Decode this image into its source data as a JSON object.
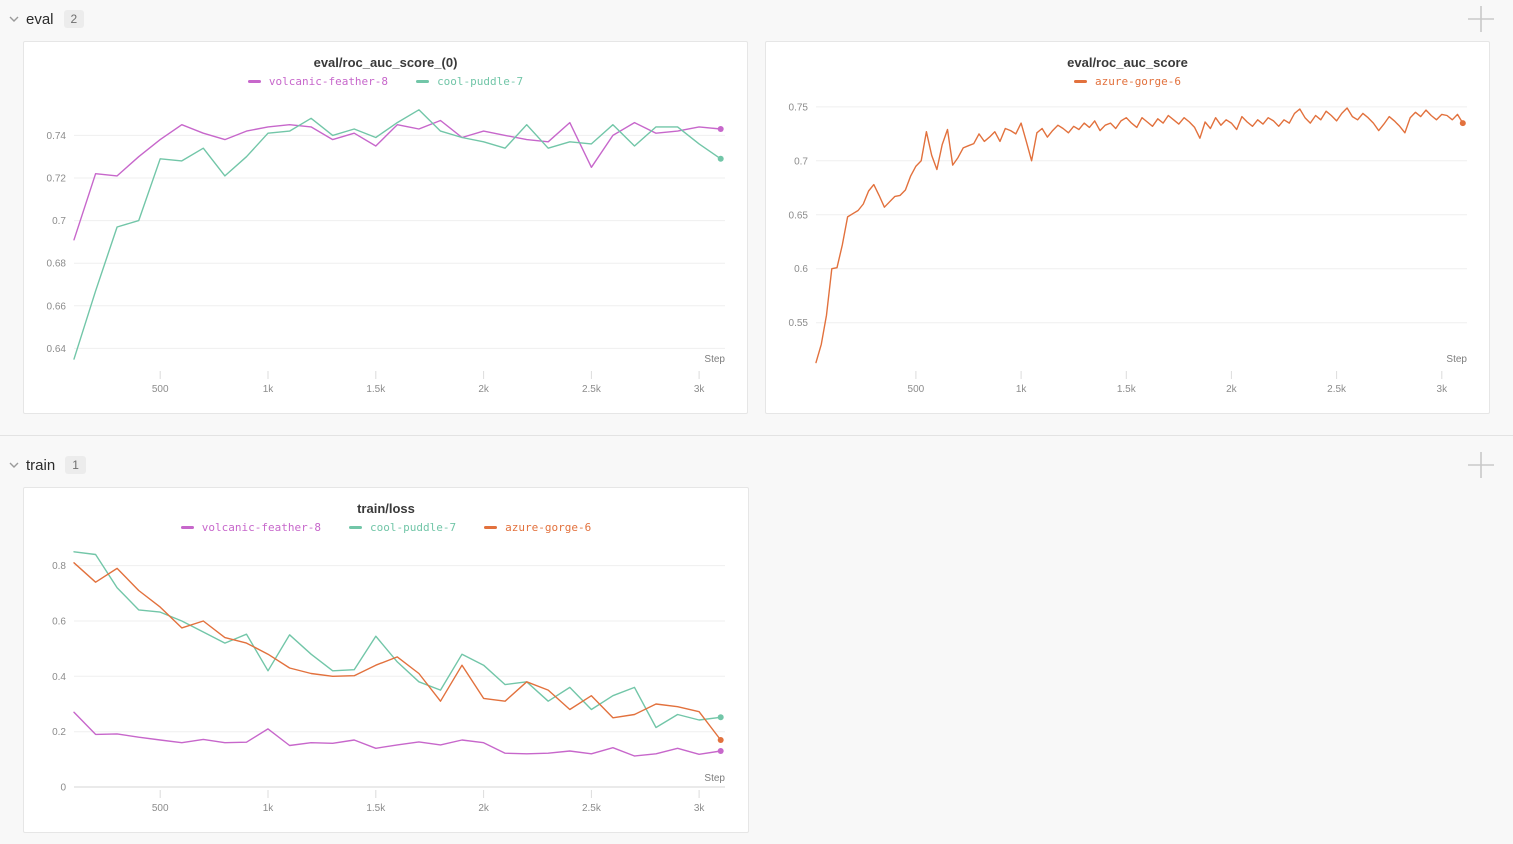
{
  "sections": [
    {
      "label": "eval",
      "count": "2"
    },
    {
      "label": "train",
      "count": "1"
    }
  ],
  "icons": {
    "collapse": "chevron-down-icon",
    "add_panel": "plus-icon"
  },
  "colors": {
    "volcanic_feather_8": "#C767CB",
    "cool_puddle_7": "#72C6A8",
    "azure_gorge_6": "#E2713D",
    "grid": "#efefef",
    "axis_text": "#8c8c8c"
  },
  "chart_data": [
    {
      "type": "line",
      "title": "eval/roc_auc_score_(0)",
      "xlabel": "Step",
      "legend_position": "top",
      "grid": "horizontal",
      "x_axis": {
        "min": 100,
        "max": 3120,
        "ticks": [
          500,
          1000,
          1500,
          2000,
          2500,
          3000
        ],
        "tick_labels": [
          "500",
          "1k",
          "1.5k",
          "2k",
          "2.5k",
          "3k"
        ]
      },
      "y_axis": {
        "min": 0.6308,
        "max": 0.7552,
        "ticks": [
          0.64,
          0.66,
          0.68,
          0.7,
          0.72,
          0.74
        ],
        "tick_labels": [
          "0.64",
          "0.66",
          "0.68",
          "0.7",
          "0.72",
          "0.74"
        ],
        "zero_axis_line": false
      },
      "series": [
        {
          "name": "volcanic-feather-8",
          "color": "#C767CB",
          "x_start": 100,
          "x_step": 100,
          "end_dot": true,
          "values": [
            0.691,
            0.722,
            0.721,
            0.73,
            0.738,
            0.745,
            0.741,
            0.738,
            0.742,
            0.744,
            0.745,
            0.744,
            0.738,
            0.741,
            0.735,
            0.745,
            0.743,
            0.747,
            0.739,
            0.742,
            0.74,
            0.738,
            0.737,
            0.746,
            0.725,
            0.74,
            0.746,
            0.741,
            0.742,
            0.744,
            0.743
          ]
        },
        {
          "name": "cool-puddle-7",
          "color": "#72C6A8",
          "x_start": 100,
          "x_step": 100,
          "end_dot": true,
          "values": [
            0.635,
            0.667,
            0.697,
            0.7,
            0.729,
            0.728,
            0.734,
            0.721,
            0.73,
            0.741,
            0.742,
            0.748,
            0.74,
            0.743,
            0.739,
            0.746,
            0.752,
            0.742,
            0.739,
            0.737,
            0.734,
            0.745,
            0.734,
            0.737,
            0.736,
            0.745,
            0.735,
            0.744,
            0.744,
            0.736,
            0.729
          ]
        }
      ]
    },
    {
      "type": "line",
      "title": "eval/roc_auc_score",
      "xlabel": "Step",
      "legend_position": "top",
      "grid": "horizontal",
      "x_axis": {
        "min": 25,
        "max": 3120,
        "ticks": [
          500,
          1000,
          1500,
          2000,
          2500,
          3000
        ],
        "tick_labels": [
          "500",
          "1k",
          "1.5k",
          "2k",
          "2.5k",
          "3k"
        ]
      },
      "y_axis": {
        "min": 0.508,
        "max": 0.7536,
        "ticks": [
          0.55,
          0.6,
          0.65,
          0.7,
          0.75
        ],
        "tick_labels": [
          "0.55",
          "0.6",
          "0.65",
          "0.7",
          "0.75"
        ],
        "zero_axis_line": false
      },
      "series": [
        {
          "name": "azure-gorge-6",
          "color": "#E2713D",
          "x_start": 25,
          "x_step": 25,
          "end_dot": true,
          "values": [
            0.513,
            0.53,
            0.557,
            0.6,
            0.601,
            0.622,
            0.648,
            0.651,
            0.654,
            0.66,
            0.672,
            0.678,
            0.668,
            0.657,
            0.662,
            0.667,
            0.668,
            0.673,
            0.686,
            0.695,
            0.7,
            0.727,
            0.705,
            0.692,
            0.715,
            0.729,
            0.696,
            0.703,
            0.712,
            0.714,
            0.716,
            0.725,
            0.718,
            0.722,
            0.727,
            0.718,
            0.73,
            0.728,
            0.725,
            0.735,
            0.718,
            0.7,
            0.726,
            0.73,
            0.722,
            0.728,
            0.733,
            0.73,
            0.726,
            0.732,
            0.729,
            0.735,
            0.731,
            0.737,
            0.728,
            0.733,
            0.735,
            0.73,
            0.737,
            0.74,
            0.735,
            0.731,
            0.74,
            0.736,
            0.732,
            0.739,
            0.735,
            0.742,
            0.738,
            0.734,
            0.74,
            0.736,
            0.731,
            0.721,
            0.736,
            0.73,
            0.74,
            0.733,
            0.738,
            0.735,
            0.729,
            0.741,
            0.736,
            0.732,
            0.738,
            0.734,
            0.74,
            0.737,
            0.732,
            0.738,
            0.735,
            0.744,
            0.748,
            0.74,
            0.735,
            0.742,
            0.738,
            0.746,
            0.742,
            0.737,
            0.744,
            0.749,
            0.741,
            0.738,
            0.744,
            0.74,
            0.735,
            0.728,
            0.734,
            0.741,
            0.737,
            0.732,
            0.726,
            0.74,
            0.745,
            0.741,
            0.747,
            0.742,
            0.738,
            0.743,
            0.742,
            0.738,
            0.743,
            0.735
          ]
        }
      ]
    },
    {
      "type": "line",
      "title": "train/loss",
      "xlabel": "Step",
      "legend_position": "top",
      "grid": "horizontal",
      "x_axis": {
        "min": 100,
        "max": 3120,
        "ticks": [
          500,
          1000,
          1500,
          2000,
          2500,
          3000
        ],
        "tick_labels": [
          "500",
          "1k",
          "1.5k",
          "2k",
          "2.5k",
          "3k"
        ]
      },
      "y_axis": {
        "min": 0,
        "max": 0.86,
        "ticks": [
          0,
          0.2,
          0.4,
          0.6,
          0.8
        ],
        "tick_labels": [
          "0",
          "0.2",
          "0.4",
          "0.6",
          "0.8"
        ],
        "zero_axis_line": true
      },
      "series": [
        {
          "name": "volcanic-feather-8",
          "color": "#C767CB",
          "x_start": 100,
          "x_step": 100,
          "end_dot": true,
          "values": [
            0.27,
            0.19,
            0.192,
            0.18,
            0.17,
            0.16,
            0.172,
            0.16,
            0.162,
            0.21,
            0.15,
            0.16,
            0.158,
            0.17,
            0.14,
            0.152,
            0.163,
            0.152,
            0.17,
            0.16,
            0.122,
            0.12,
            0.122,
            0.13,
            0.12,
            0.142,
            0.112,
            0.12,
            0.14,
            0.118,
            0.13
          ]
        },
        {
          "name": "cool-puddle-7",
          "color": "#72C6A8",
          "x_start": 100,
          "x_step": 100,
          "end_dot": true,
          "values": [
            0.85,
            0.84,
            0.72,
            0.64,
            0.632,
            0.6,
            0.56,
            0.52,
            0.552,
            0.42,
            0.55,
            0.48,
            0.42,
            0.424,
            0.545,
            0.452,
            0.38,
            0.35,
            0.48,
            0.44,
            0.37,
            0.38,
            0.31,
            0.36,
            0.28,
            0.33,
            0.36,
            0.215,
            0.262,
            0.242,
            0.252
          ]
        },
        {
          "name": "azure-gorge-6",
          "color": "#E2713D",
          "x_start": 100,
          "x_step": 100,
          "end_dot": true,
          "values": [
            0.81,
            0.74,
            0.79,
            0.71,
            0.65,
            0.575,
            0.6,
            0.54,
            0.52,
            0.48,
            0.43,
            0.41,
            0.4,
            0.402,
            0.44,
            0.47,
            0.41,
            0.31,
            0.44,
            0.32,
            0.31,
            0.38,
            0.35,
            0.28,
            0.33,
            0.25,
            0.262,
            0.3,
            0.29,
            0.272,
            0.17
          ]
        }
      ]
    }
  ]
}
